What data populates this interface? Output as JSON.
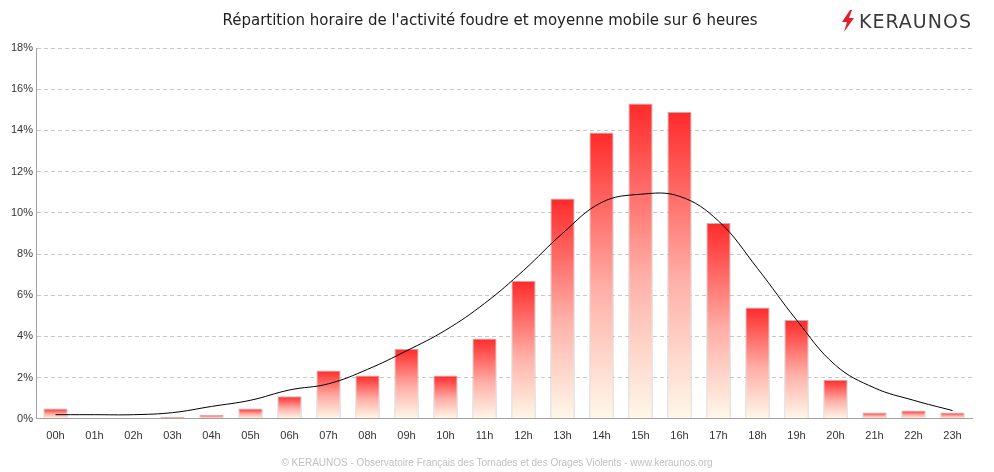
{
  "chart_data": {
    "type": "bar",
    "title": "Répartition horaire de l'activité foudre et moyenne mobile sur 6 heures",
    "categories": [
      "00h",
      "01h",
      "02h",
      "03h",
      "04h",
      "05h",
      "06h",
      "07h",
      "08h",
      "09h",
      "10h",
      "11h",
      "12h",
      "13h",
      "14h",
      "15h",
      "16h",
      "17h",
      "18h",
      "19h",
      "20h",
      "21h",
      "22h",
      "23h"
    ],
    "series": [
      {
        "type": "bar",
        "color": "#ff2a2a",
        "values": [
          0.5,
          0,
          0,
          0.1,
          0.2,
          0.5,
          1.1,
          2.35,
          2.1,
          3.4,
          2.1,
          3.9,
          6.7,
          10.7,
          13.9,
          15.3,
          14.9,
          9.5,
          5.4,
          4.8,
          1.9,
          0.3,
          0.4,
          0.3
        ]
      },
      {
        "type": "line",
        "color": "#000000",
        "marker": "none",
        "line_style": "smooth",
        "values": [
          0.2,
          0.2,
          0.2,
          0.3,
          0.6,
          0.9,
          1.4,
          1.7,
          2.4,
          3.3,
          4.3,
          5.6,
          7.2,
          9.0,
          10.5,
          10.9,
          10.8,
          9.6,
          7.3,
          4.8,
          2.6,
          1.5,
          0.9,
          0.4
        ]
      }
    ],
    "ylim": [
      0,
      18
    ],
    "yticks": [
      {
        "value": 0,
        "label": "0%"
      },
      {
        "value": 2,
        "label": "2%"
      },
      {
        "value": 4,
        "label": "4%"
      },
      {
        "value": 6,
        "label": "6%"
      },
      {
        "value": 8,
        "label": "8%"
      },
      {
        "value": 10,
        "label": "10%"
      },
      {
        "value": 12,
        "label": "12%"
      },
      {
        "value": 14,
        "label": "14%"
      },
      {
        "value": 16,
        "label": "16%"
      },
      {
        "value": 18,
        "label": "18%"
      }
    ],
    "grid": true
  },
  "logo": "KERAUNOS",
  "footer": "© KERAUNOS - Observatoire Français des Tornades et des Orages Violents - www.keraunos.org"
}
